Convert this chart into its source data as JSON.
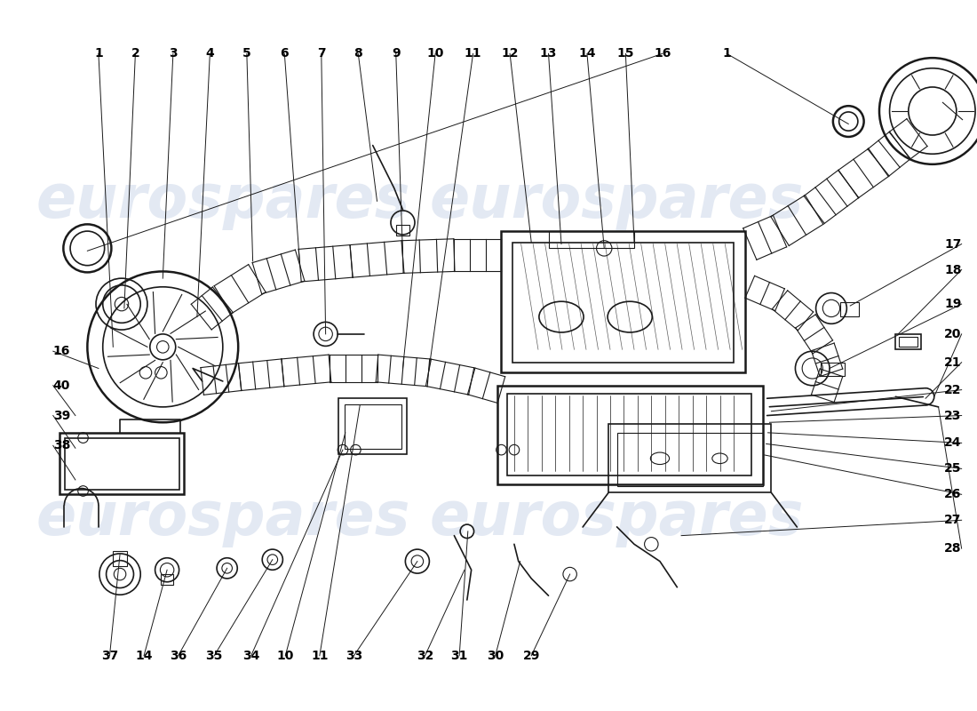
{
  "background_color": "#ffffff",
  "watermark_text": "eurospares",
  "watermark_color": "#c8d4e8",
  "line_color": "#1a1a1a",
  "label_color": "#000000",
  "label_fontsize": 10,
  "label_fontweight": "bold"
}
